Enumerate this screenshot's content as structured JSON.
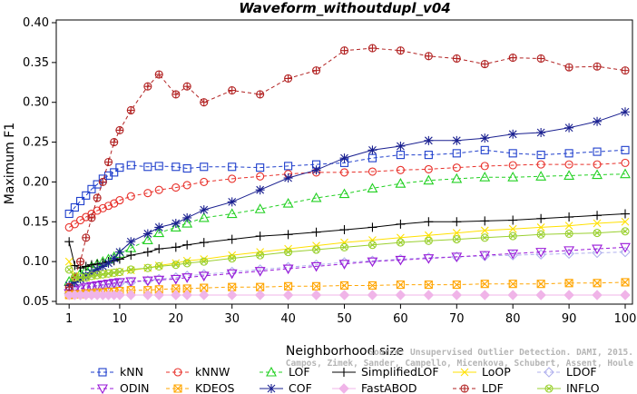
{
  "chart_data": {
    "type": "line",
    "title": "Waveform_withoutdupl_v04",
    "xlabel": "Neighborhood size",
    "ylabel": "Maximum F1",
    "xlim": [
      0,
      100
    ],
    "ylim": [
      0.05,
      0.4
    ],
    "x_ticks": [
      1,
      10,
      20,
      30,
      40,
      50,
      60,
      70,
      80,
      90,
      100
    ],
    "y_ticks": [
      "0.05",
      "0.10",
      "0.15",
      "0.20",
      "0.25",
      "0.30",
      "0.35",
      "0.40"
    ],
    "x": [
      1,
      2,
      3,
      4,
      5,
      6,
      7,
      8,
      9,
      10,
      12,
      15,
      17,
      20,
      22,
      25,
      30,
      35,
      40,
      45,
      50,
      55,
      60,
      65,
      70,
      75,
      80,
      85,
      90,
      95,
      100
    ],
    "legend_position": "bottom",
    "watermark_lines": [
      "Source: Unsupervised Outlier Detection. DAMI, 2015.",
      "Campos, Zimek, Sander, Campello, Micenkova, Schubert, Assent, Houle"
    ],
    "series": [
      {
        "name": "kNN",
        "color": "#1f3fcc",
        "marker": "square",
        "dash": "4,3",
        "values": [
          0.16,
          0.168,
          0.176,
          0.183,
          0.191,
          0.197,
          0.204,
          0.208,
          0.212,
          0.218,
          0.221,
          0.219,
          0.22,
          0.219,
          0.217,
          0.219,
          0.219,
          0.218,
          0.22,
          0.222,
          0.224,
          0.23,
          0.234,
          0.234,
          0.236,
          0.24,
          0.236,
          0.234,
          0.236,
          0.238,
          0.24
        ]
      },
      {
        "name": "kNNW",
        "color": "#e8302a",
        "marker": "circle",
        "dash": "4,3",
        "values": [
          0.143,
          0.147,
          0.152,
          0.156,
          0.16,
          0.164,
          0.167,
          0.17,
          0.173,
          0.177,
          0.182,
          0.186,
          0.19,
          0.193,
          0.196,
          0.2,
          0.204,
          0.207,
          0.21,
          0.212,
          0.212,
          0.213,
          0.215,
          0.216,
          0.218,
          0.22,
          0.221,
          0.222,
          0.222,
          0.222,
          0.224
        ]
      },
      {
        "name": "LOF",
        "color": "#22d022",
        "marker": "triangle",
        "dash": "4,3",
        "values": [
          0.075,
          0.08,
          0.085,
          0.09,
          0.094,
          0.097,
          0.1,
          0.103,
          0.106,
          0.11,
          0.117,
          0.127,
          0.136,
          0.143,
          0.148,
          0.155,
          0.16,
          0.166,
          0.173,
          0.18,
          0.185,
          0.192,
          0.198,
          0.202,
          0.204,
          0.206,
          0.206,
          0.207,
          0.208,
          0.209,
          0.21
        ]
      },
      {
        "name": "SimplifiedLOF",
        "color": "#000000",
        "marker": "plus",
        "dash": "",
        "values": [
          0.125,
          0.095,
          0.092,
          0.094,
          0.096,
          0.097,
          0.098,
          0.1,
          0.101,
          0.103,
          0.108,
          0.112,
          0.116,
          0.118,
          0.121,
          0.124,
          0.128,
          0.132,
          0.134,
          0.137,
          0.14,
          0.143,
          0.147,
          0.15,
          0.15,
          0.151,
          0.152,
          0.154,
          0.156,
          0.158,
          0.16
        ]
      },
      {
        "name": "LoOP",
        "color": "#ffe000",
        "marker": "cross",
        "dash": "",
        "values": [
          0.1,
          0.082,
          0.08,
          0.08,
          0.082,
          0.083,
          0.084,
          0.085,
          0.086,
          0.087,
          0.089,
          0.092,
          0.095,
          0.098,
          0.101,
          0.103,
          0.108,
          0.112,
          0.116,
          0.12,
          0.124,
          0.127,
          0.13,
          0.133,
          0.136,
          0.139,
          0.141,
          0.143,
          0.145,
          0.148,
          0.15
        ]
      },
      {
        "name": "LDOF",
        "color": "#b0b0ee",
        "marker": "diamond",
        "dash": "4,3",
        "values": [
          0.06,
          0.062,
          0.064,
          0.066,
          0.068,
          0.069,
          0.07,
          0.071,
          0.072,
          0.073,
          0.074,
          0.076,
          0.078,
          0.08,
          0.082,
          0.084,
          0.087,
          0.09,
          0.093,
          0.096,
          0.099,
          0.101,
          0.103,
          0.105,
          0.106,
          0.107,
          0.108,
          0.109,
          0.11,
          0.111,
          0.112
        ]
      },
      {
        "name": "ODIN",
        "color": "#9a18d8",
        "marker": "triangle-down",
        "dash": "4,3",
        "values": [
          0.06,
          0.064,
          0.066,
          0.068,
          0.069,
          0.07,
          0.071,
          0.072,
          0.073,
          0.074,
          0.075,
          0.076,
          0.077,
          0.078,
          0.08,
          0.082,
          0.085,
          0.088,
          0.091,
          0.094,
          0.097,
          0.1,
          0.102,
          0.104,
          0.106,
          0.108,
          0.11,
          0.112,
          0.114,
          0.116,
          0.118
        ]
      },
      {
        "name": "KDEOS",
        "color": "#ffa500",
        "marker": "xsquare",
        "dash": "4,3",
        "values": [
          0.058,
          0.059,
          0.059,
          0.06,
          0.06,
          0.061,
          0.061,
          0.062,
          0.062,
          0.063,
          0.064,
          0.064,
          0.065,
          0.066,
          0.066,
          0.067,
          0.068,
          0.068,
          0.069,
          0.069,
          0.07,
          0.07,
          0.071,
          0.071,
          0.071,
          0.072,
          0.072,
          0.072,
          0.073,
          0.073,
          0.074
        ]
      },
      {
        "name": "COF",
        "color": "#1a2090",
        "marker": "star",
        "dash": "",
        "values": [
          0.07,
          0.074,
          0.078,
          0.082,
          0.086,
          0.09,
          0.094,
          0.098,
          0.104,
          0.112,
          0.125,
          0.135,
          0.143,
          0.148,
          0.155,
          0.165,
          0.175,
          0.19,
          0.205,
          0.215,
          0.23,
          0.24,
          0.245,
          0.252,
          0.252,
          0.255,
          0.26,
          0.262,
          0.268,
          0.276,
          0.288
        ]
      },
      {
        "name": "FastABOD",
        "color": "#f0b4e8",
        "marker": "diamond-filled",
        "dash": "",
        "values": [
          0.058,
          0.058,
          0.058,
          0.058,
          0.058,
          0.058,
          0.058,
          0.058,
          0.058,
          0.058,
          0.058,
          0.058,
          0.058,
          0.058,
          0.058,
          0.058,
          0.058,
          0.058,
          0.058,
          0.058,
          0.058,
          0.058,
          0.058,
          0.058,
          0.058,
          0.058,
          0.058,
          0.058,
          0.058,
          0.058,
          0.058
        ]
      },
      {
        "name": "LDF",
        "color": "#b22222",
        "marker": "circle-plus",
        "dash": "4,3",
        "values": [
          0.068,
          0.08,
          0.1,
          0.13,
          0.155,
          0.18,
          0.2,
          0.225,
          0.25,
          0.265,
          0.29,
          0.32,
          0.335,
          0.31,
          0.32,
          0.3,
          0.315,
          0.31,
          0.33,
          0.34,
          0.365,
          0.368,
          0.365,
          0.358,
          0.355,
          0.348,
          0.356,
          0.355,
          0.344,
          0.345,
          0.34
        ]
      },
      {
        "name": "INFLO",
        "color": "#9ad030",
        "marker": "circle-x",
        "dash": "",
        "values": [
          0.09,
          0.08,
          0.08,
          0.08,
          0.082,
          0.083,
          0.084,
          0.085,
          0.086,
          0.087,
          0.09,
          0.092,
          0.094,
          0.096,
          0.098,
          0.1,
          0.104,
          0.108,
          0.112,
          0.115,
          0.118,
          0.121,
          0.124,
          0.126,
          0.128,
          0.13,
          0.132,
          0.134,
          0.135,
          0.136,
          0.138
        ]
      }
    ]
  }
}
